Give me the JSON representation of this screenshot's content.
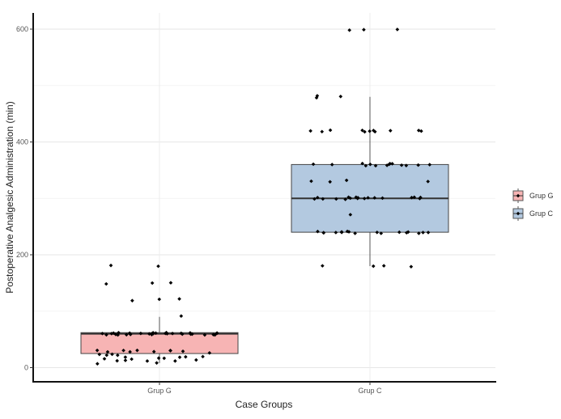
{
  "chart_data": {
    "type": "box",
    "title": "",
    "xlabel": "Case Groups",
    "ylabel": "Postoperative Analgesic Administration (min)",
    "ylim": [
      -8,
      628
    ],
    "yticks": [
      0,
      200,
      400,
      600
    ],
    "grid": true,
    "legend_position": "right",
    "categories": [
      "Grup G",
      "Grup C"
    ],
    "legend": [
      "Grup G",
      "Grup C"
    ],
    "colors": {
      "Grup G": "#f7b4b4",
      "Grup C": "#b3c9e0",
      "points": "#000000"
    },
    "boxes": [
      {
        "name": "Grup G",
        "q1": 25,
        "median": 60,
        "q3": 62,
        "whisker_low": 8,
        "whisker_high": 90
      },
      {
        "name": "Grup C",
        "q1": 240,
        "median": 300,
        "q3": 360,
        "whisker_low": 180,
        "whisker_high": 480
      }
    ],
    "points": {
      "Grup G": [
        180,
        180,
        150,
        150,
        150,
        120,
        120,
        120,
        90,
        60,
        60,
        60,
        60,
        60,
        60,
        60,
        60,
        60,
        60,
        60,
        60,
        60,
        60,
        60,
        60,
        60,
        60,
        60,
        60,
        60,
        60,
        60,
        60,
        60,
        60,
        60,
        60,
        60,
        60,
        60,
        60,
        30,
        30,
        30,
        30,
        30,
        30,
        30,
        30,
        30,
        25,
        25,
        22,
        20,
        20,
        20,
        20,
        20,
        18,
        18,
        15,
        15,
        15,
        12,
        12,
        10,
        10,
        10,
        8,
        8
      ],
      "Grup C": [
        600,
        600,
        600,
        480,
        480,
        480,
        420,
        420,
        420,
        420,
        420,
        420,
        420,
        420,
        420,
        420,
        420,
        360,
        360,
        360,
        360,
        360,
        360,
        360,
        360,
        360,
        360,
        360,
        360,
        360,
        360,
        330,
        330,
        330,
        330,
        300,
        300,
        300,
        300,
        300,
        300,
        300,
        300,
        300,
        300,
        300,
        300,
        300,
        300,
        300,
        300,
        300,
        300,
        270,
        240,
        240,
        240,
        240,
        240,
        240,
        240,
        240,
        240,
        240,
        240,
        240,
        240,
        240,
        240,
        240,
        240,
        180,
        180,
        180,
        180
      ]
    }
  }
}
